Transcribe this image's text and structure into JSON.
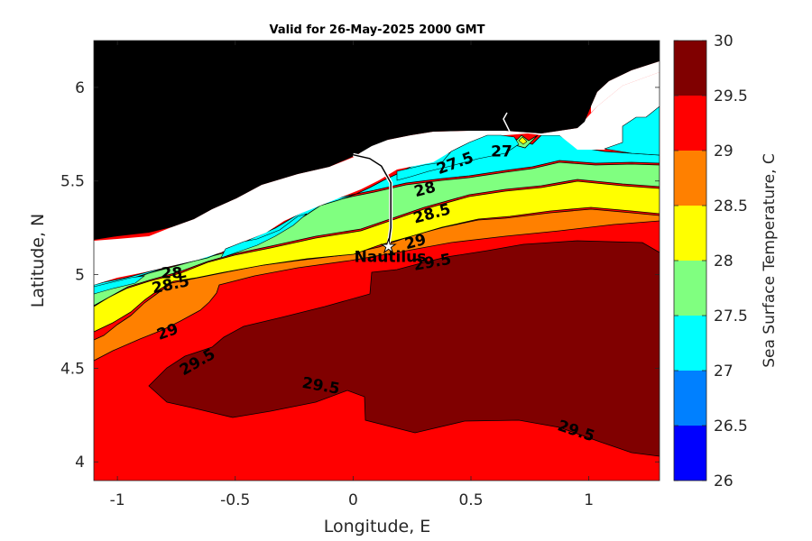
{
  "title": "Valid for 26-May-2025 2000 GMT",
  "chart_data": {
    "type": "heatmap",
    "subtype": "filled-contour map",
    "title": "Valid for 26-May-2025 2000 GMT",
    "xlabel": "Longitude, E",
    "ylabel": "Latitude, N",
    "xlim": [
      -1.1,
      1.3
    ],
    "ylim": [
      3.9,
      6.25
    ],
    "xticks": [
      -1,
      -0.5,
      0,
      0.5,
      1
    ],
    "xtick_labels": [
      "-1",
      "-0.5",
      "0",
      "0.5",
      "1"
    ],
    "yticks": [
      4,
      4.5,
      5,
      5.5,
      6
    ],
    "ytick_labels": [
      "4",
      "4.5",
      "5",
      "5.5",
      "6"
    ],
    "colorbar": {
      "label": "Sea Surface Temperature, C",
      "range": [
        26,
        30
      ],
      "ticks": [
        26,
        26.5,
        27,
        27.5,
        28,
        28.5,
        29,
        29.5,
        30
      ],
      "tick_labels": [
        "26",
        "26.5",
        "27",
        "27.5",
        "28",
        "28.5",
        "29",
        "29.5",
        "30"
      ],
      "bands": [
        {
          "from": 26,
          "to": 26.5,
          "color": "#0000ff"
        },
        {
          "from": 26.5,
          "to": 27,
          "color": "#0080ff"
        },
        {
          "from": 27,
          "to": 27.5,
          "color": "#00ffff"
        },
        {
          "from": 27.5,
          "to": 28,
          "color": "#80ff80"
        },
        {
          "from": 28,
          "to": 28.5,
          "color": "#ffff00"
        },
        {
          "from": 28.5,
          "to": 29,
          "color": "#ff8000"
        },
        {
          "from": 29,
          "to": 29.5,
          "color": "#ff0000"
        },
        {
          "from": 29.5,
          "to": 30,
          "color": "#800000"
        }
      ]
    },
    "contour_labels": [
      {
        "text": "27.5",
        "lon": 0.44,
        "lat": 5.57,
        "angle": -20
      },
      {
        "text": "27",
        "lon": 0.63,
        "lat": 5.63,
        "angle": 0
      },
      {
        "text": "28",
        "lon": 0.31,
        "lat": 5.43,
        "angle": -15
      },
      {
        "text": "28.5",
        "lon": 0.34,
        "lat": 5.3,
        "angle": -15
      },
      {
        "text": "29",
        "lon": 0.27,
        "lat": 5.15,
        "angle": -15
      },
      {
        "text": "29.5",
        "lon": 0.34,
        "lat": 5.04,
        "angle": -10
      },
      {
        "text": "28",
        "lon": -0.77,
        "lat": 4.98,
        "angle": 0
      },
      {
        "text": "28.5",
        "lon": -0.77,
        "lat": 4.92,
        "angle": -12
      },
      {
        "text": "29",
        "lon": -0.78,
        "lat": 4.67,
        "angle": -20
      },
      {
        "text": "29.5",
        "lon": -0.65,
        "lat": 4.51,
        "angle": -30
      },
      {
        "text": "29.5",
        "lon": -0.14,
        "lat": 4.38,
        "angle": 10
      },
      {
        "text": "29.5",
        "lon": 0.94,
        "lat": 4.14,
        "angle": 18
      }
    ],
    "annotations": [
      {
        "text": "Nautilus",
        "lon": 0.15,
        "lat": 5.15,
        "marker": "star"
      }
    ],
    "ship_track": [
      [
        0.0,
        5.64
      ],
      [
        0.07,
        5.62
      ],
      [
        0.12,
        5.58
      ],
      [
        0.16,
        5.49
      ],
      [
        0.16,
        5.38
      ],
      [
        0.16,
        5.25
      ],
      [
        0.15,
        5.16
      ]
    ]
  }
}
